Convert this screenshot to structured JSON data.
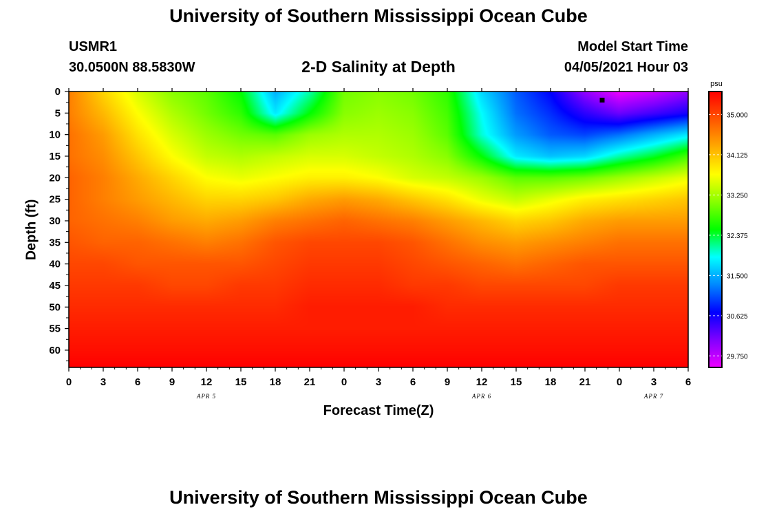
{
  "header": {
    "title": "University of Southern Mississippi Ocean Cube",
    "station": "USMR1",
    "coords": "30.0500N  88.5830W",
    "plot_title": "2-D Salinity at Depth",
    "model_label": "Model Start Time",
    "model_time": "04/05/2021 Hour 03"
  },
  "footer": {
    "title": "University of Southern Mississippi Ocean Cube"
  },
  "colors": {
    "scale": [
      "#ee00ff",
      "#8000ff",
      "#0000ff",
      "#0088ff",
      "#00ffff",
      "#00ff00",
      "#88ff00",
      "#ffff00",
      "#ffaa00",
      "#ff5500",
      "#ff0000"
    ]
  },
  "chart_data": {
    "type": "heatmap",
    "title": "2-D Salinity at Depth",
    "xlabel": "Forecast Time(Z)",
    "ylabel": "Depth (ft)",
    "x_ticks": [
      "0",
      "3",
      "6",
      "9",
      "12",
      "15",
      "18",
      "21",
      "0",
      "3",
      "6",
      "9",
      "12",
      "15",
      "18",
      "21",
      "0",
      "3",
      "6"
    ],
    "date_labels": [
      {
        "label": "APR 5",
        "hour": 12
      },
      {
        "label": "APR 6",
        "hour": 36
      },
      {
        "label": "APR 7",
        "hour": 51
      }
    ],
    "xlim": [
      0,
      54
    ],
    "ylim": [
      0,
      64
    ],
    "y_ticks": [
      "0",
      "5",
      "10",
      "15",
      "20",
      "25",
      "30",
      "35",
      "40",
      "45",
      "50",
      "55",
      "60"
    ],
    "colorbar": {
      "unit": "psu",
      "range": [
        29.5,
        35.5
      ],
      "ticks": [
        "35.000",
        "34.125",
        "33.250",
        "32.375",
        "31.500",
        "30.625",
        "29.750"
      ]
    },
    "marker": {
      "hour": 46.5,
      "depth": 2
    },
    "depths": [
      0,
      5,
      10,
      15,
      20,
      25,
      30,
      35,
      40,
      45,
      50,
      55,
      60,
      64
    ],
    "hours": [
      0,
      3,
      6,
      9,
      12,
      15,
      18,
      21,
      24,
      27,
      30,
      33,
      36,
      39,
      42,
      45,
      48,
      51,
      54
    ],
    "salinity": [
      [
        34.6,
        34.0,
        33.5,
        33.1,
        32.9,
        32.5,
        31.5,
        32.1,
        33.0,
        33.1,
        33.0,
        32.7,
        31.7,
        31.1,
        30.7,
        30.0,
        29.5,
        29.7,
        30.0
      ],
      [
        34.6,
        34.2,
        33.7,
        33.3,
        33.0,
        32.7,
        31.8,
        32.5,
        33.1,
        33.2,
        33.1,
        32.8,
        31.9,
        31.2,
        30.9,
        30.5,
        30.2,
        30.4,
        30.6
      ],
      [
        34.7,
        34.4,
        33.9,
        33.5,
        33.2,
        33.0,
        32.9,
        33.2,
        33.3,
        33.3,
        33.2,
        32.9,
        32.0,
        31.4,
        31.1,
        31.0,
        31.2,
        31.5,
        31.8
      ],
      [
        34.7,
        34.5,
        34.1,
        33.7,
        33.4,
        33.3,
        33.4,
        33.5,
        33.5,
        33.4,
        33.3,
        33.1,
        32.5,
        31.8,
        31.6,
        31.7,
        32.1,
        32.4,
        32.8
      ],
      [
        34.8,
        34.6,
        34.3,
        34.0,
        33.7,
        33.6,
        33.7,
        33.8,
        33.8,
        33.7,
        33.5,
        33.4,
        33.2,
        32.9,
        32.9,
        33.0,
        33.2,
        33.4,
        33.6
      ],
      [
        34.8,
        34.6,
        34.4,
        34.2,
        34.0,
        34.0,
        34.1,
        34.3,
        34.4,
        34.3,
        34.1,
        33.9,
        33.6,
        33.4,
        33.6,
        33.8,
        33.9,
        34.0,
        34.1
      ],
      [
        34.8,
        34.7,
        34.6,
        34.4,
        34.3,
        34.4,
        34.6,
        34.7,
        34.8,
        34.7,
        34.6,
        34.4,
        34.2,
        34.0,
        34.1,
        34.3,
        34.4,
        34.4,
        34.4
      ],
      [
        34.9,
        34.8,
        34.8,
        34.7,
        34.6,
        34.7,
        34.9,
        35.0,
        35.0,
        35.0,
        34.9,
        34.7,
        34.5,
        34.4,
        34.5,
        34.6,
        34.7,
        34.7,
        34.7
      ],
      [
        35.0,
        35.0,
        34.9,
        34.9,
        34.9,
        34.9,
        35.0,
        35.1,
        35.1,
        35.1,
        35.0,
        34.9,
        34.8,
        34.7,
        34.8,
        34.9,
        34.9,
        34.9,
        34.9
      ],
      [
        35.1,
        35.1,
        35.1,
        35.0,
        35.0,
        35.1,
        35.1,
        35.2,
        35.2,
        35.2,
        35.1,
        35.1,
        35.0,
        35.0,
        35.0,
        35.0,
        35.1,
        35.1,
        35.1
      ],
      [
        35.2,
        35.2,
        35.2,
        35.2,
        35.2,
        35.2,
        35.2,
        35.3,
        35.3,
        35.3,
        35.3,
        35.2,
        35.2,
        35.2,
        35.2,
        35.2,
        35.2,
        35.2,
        35.2
      ],
      [
        35.3,
        35.3,
        35.3,
        35.3,
        35.3,
        35.3,
        35.3,
        35.3,
        35.3,
        35.3,
        35.3,
        35.3,
        35.3,
        35.3,
        35.3,
        35.3,
        35.3,
        35.3,
        35.3
      ],
      [
        35.4,
        35.4,
        35.4,
        35.4,
        35.4,
        35.4,
        35.4,
        35.4,
        35.4,
        35.4,
        35.4,
        35.4,
        35.4,
        35.4,
        35.4,
        35.4,
        35.4,
        35.4,
        35.4
      ],
      [
        35.5,
        35.5,
        35.5,
        35.5,
        35.5,
        35.5,
        35.5,
        35.5,
        35.5,
        35.5,
        35.5,
        35.5,
        35.5,
        35.5,
        35.5,
        35.5,
        35.5,
        35.5,
        35.5
      ]
    ]
  }
}
